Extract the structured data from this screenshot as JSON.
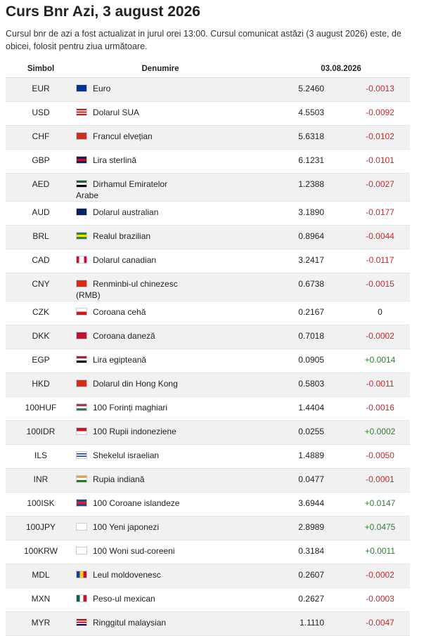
{
  "header": {
    "title": "Curs Bnr Azi, 3 august 2026",
    "subtitle": "Cursul bnr de azi a fost actualizat in jurul orei 13:00. Cursul comunicat astăzi (3 august 2026) este, de obicei, folosit pentru ziua următoare."
  },
  "table": {
    "columns": [
      "Simbol",
      "Denumire",
      "03.08.2026"
    ],
    "rows": [
      [
        "EUR",
        "Euro",
        "5.2460",
        "-0.0013"
      ],
      [
        "USD",
        "Dolarul SUA",
        "4.5503",
        "-0.0092"
      ],
      [
        "CHF",
        "Francul elvețian",
        "5.6318",
        "-0.0102"
      ],
      [
        "GBP",
        "Lira sterlină",
        "6.1231",
        "-0.0101"
      ],
      [
        "AED",
        "Dirhamul Emiratelor Arabe",
        "1.2388",
        "-0.0027"
      ],
      [
        "AUD",
        "Dolarul australian",
        "3.1890",
        "-0.0177"
      ],
      [
        "BRL",
        "Realul brazilian",
        "0.8964",
        "-0.0044"
      ],
      [
        "CAD",
        "Dolarul canadian",
        "3.2417",
        "-0.0117"
      ],
      [
        "CNY",
        "Renminbi-ul chinezesc (RMB)",
        "0.6738",
        "-0.0015"
      ],
      [
        "CZK",
        "Coroana cehă",
        "0.2167",
        "0"
      ],
      [
        "DKK",
        "Coroana daneză",
        "0.7018",
        "-0.0002"
      ],
      [
        "EGP",
        "Lira egipteană",
        "0.0905",
        "+0.0014"
      ],
      [
        "HKD",
        "Dolarul din Hong Kong",
        "0.5803",
        "-0.0011"
      ],
      [
        "100HUF",
        "100 Forinți maghiari",
        "1.4404",
        "-0.0016"
      ],
      [
        "100IDR",
        "100 Rupii indoneziene",
        "0.0255",
        "+0.0002"
      ],
      [
        "ILS",
        "Shekelul israelian",
        "1.4889",
        "-0.0050"
      ],
      [
        "INR",
        "Rupia indiană",
        "0.0477",
        "-0.0001"
      ],
      [
        "100ISK",
        "100 Coroane islandeze",
        "3.6944",
        "+0.0147"
      ],
      [
        "100JPY",
        "100 Yeni japonezi",
        "2.8989",
        "+0.0475"
      ],
      [
        "100KRW",
        "100 Woni sud-coreeni",
        "0.3184",
        "+0.0011"
      ],
      [
        "MDL",
        "Leul moldovenesc",
        "0.2607",
        "-0.0002"
      ],
      [
        "MXN",
        "Peso-ul mexican",
        "0.2627",
        "-0.0003"
      ],
      [
        "MYR",
        "Ringgitul malaysian",
        "1.1110",
        "-0.0047"
      ]
    ]
  }
}
